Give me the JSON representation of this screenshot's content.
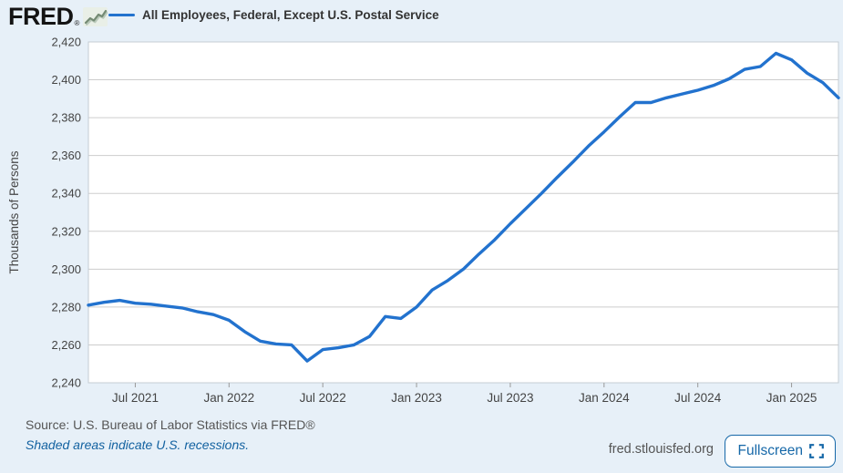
{
  "header": {
    "logo_text": "FRED",
    "logo_mark": "®",
    "sparkline_icon": "fred-sparkline-icon"
  },
  "legend": {
    "swatch_color": "#2272ce",
    "label": "All Employees, Federal, Except U.S. Postal Service"
  },
  "chart_data": {
    "type": "line",
    "title": "All Employees, Federal, Except U.S. Postal Service",
    "ylabel": "Thousands of Persons",
    "xlabel": "",
    "frequency": "monthly",
    "x_start": "2021-04",
    "x_end": "2025-04",
    "ylim": [
      2240,
      2420
    ],
    "y_ticks": [
      2240,
      2260,
      2280,
      2300,
      2320,
      2340,
      2360,
      2380,
      2400,
      2420
    ],
    "x_tick_labels": [
      "Jul 2021",
      "Jan 2022",
      "Jul 2022",
      "Jan 2023",
      "Jul 2023",
      "Jan 2024",
      "Jul 2024",
      "Jan 2025"
    ],
    "x_tick_month_indices": [
      3,
      9,
      15,
      21,
      27,
      33,
      39,
      45
    ],
    "grid": "horizontal",
    "legend_position": "top",
    "series": [
      {
        "name": "All Employees, Federal, Except U.S. Postal Service",
        "color": "#2272ce",
        "months": [
          "2021-04",
          "2021-05",
          "2021-06",
          "2021-07",
          "2021-08",
          "2021-09",
          "2021-10",
          "2021-11",
          "2021-12",
          "2022-01",
          "2022-02",
          "2022-03",
          "2022-04",
          "2022-05",
          "2022-06",
          "2022-07",
          "2022-08",
          "2022-09",
          "2022-10",
          "2022-11",
          "2022-12",
          "2023-01",
          "2023-02",
          "2023-03",
          "2023-04",
          "2023-05",
          "2023-06",
          "2023-07",
          "2023-08",
          "2023-09",
          "2023-10",
          "2023-11",
          "2023-12",
          "2024-01",
          "2024-02",
          "2024-03",
          "2024-04",
          "2024-05",
          "2024-06",
          "2024-07",
          "2024-08",
          "2024-09",
          "2024-10",
          "2024-11",
          "2024-12",
          "2025-01",
          "2025-02",
          "2025-03",
          "2025-04"
        ],
        "values": [
          2281,
          2282.5,
          2283.5,
          2282,
          2281.5,
          2280.5,
          2279.5,
          2277.5,
          2276,
          2273,
          2267,
          2262,
          2260.5,
          2260,
          2251.5,
          2257.5,
          2258.5,
          2260,
          2264.5,
          2275,
          2274,
          2280,
          2289,
          2294,
          2300,
          2308,
          2315.5,
          2324,
          2332,
          2340,
          2348.5,
          2356.5,
          2365,
          2372.5,
          2380.5,
          2388,
          2388,
          2390.5,
          2392.5,
          2394.5,
          2397,
          2400.5,
          2405.5,
          2407,
          2414,
          2410.5,
          2403.5,
          2398.5,
          2390.5
        ]
      }
    ]
  },
  "footer": {
    "source_text": "Source: U.S. Bureau of Labor Statistics via FRED®",
    "recession_note": "Shaded areas indicate U.S. recessions.",
    "site_text": "fred.stlouisfed.org",
    "fullscreen_label": "Fullscreen"
  },
  "colors": {
    "background": "#e7f0f8",
    "plot_background": "#ffffff",
    "gridline": "#cdcdcd",
    "plot_border": "#c4ccd3",
    "axis_tick": "#999999",
    "tick_text": "#444444",
    "line": "#2272ce",
    "link_blue": "#1261a0",
    "button_blue": "#1668a8"
  }
}
